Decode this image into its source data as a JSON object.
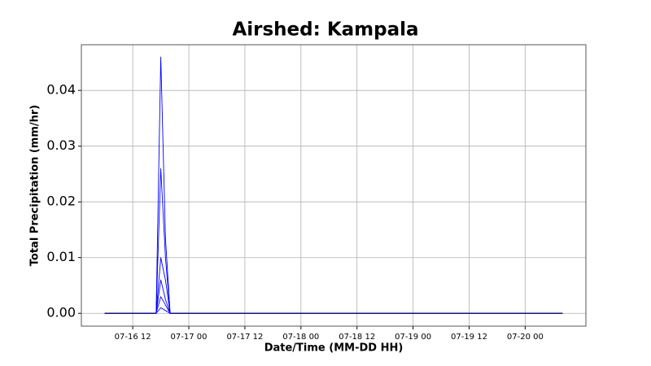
{
  "chart_data": {
    "type": "line",
    "title": "Airshed: Kampala",
    "x_label": "Date/Time (MM-DD HH)",
    "y_label": "Total Precipitation (mm/hr)",
    "x": [
      "07-16 06",
      "07-16 17",
      "07-16 18",
      "07-16 19",
      "07-16 20",
      "07-20 08"
    ],
    "color": "#0000ff",
    "series": [
      {
        "values": [
          0,
          0,
          0.046,
          0.0135,
          0,
          0
        ]
      },
      {
        "values": [
          0,
          0,
          0.026,
          0.01,
          0,
          0
        ]
      },
      {
        "values": [
          0,
          0,
          0.01,
          0.006,
          0,
          0
        ]
      },
      {
        "values": [
          0,
          0,
          0.006,
          0.0025,
          0,
          0
        ]
      },
      {
        "values": [
          0,
          0,
          0.003,
          0.0015,
          0,
          0
        ]
      },
      {
        "values": [
          0,
          0,
          0.001,
          0.0005,
          0,
          0
        ]
      }
    ],
    "xlim": [
      "07-16 01",
      "07-20 13"
    ],
    "xticks": [
      "07-16 12",
      "07-17 00",
      "07-17 12",
      "07-18 00",
      "07-18 12",
      "07-19 00",
      "07-19 12",
      "07-20 00"
    ],
    "ylim": [
      -0.0023,
      0.0482
    ],
    "yticks": [
      {
        "value": 0,
        "label": "0.00"
      },
      {
        "value": 0.01,
        "label": "0.01"
      },
      {
        "value": 0.02,
        "label": "0.02"
      },
      {
        "value": 0.03,
        "label": "0.03"
      },
      {
        "value": 0.04,
        "label": "0.04"
      }
    ],
    "grid": true
  }
}
